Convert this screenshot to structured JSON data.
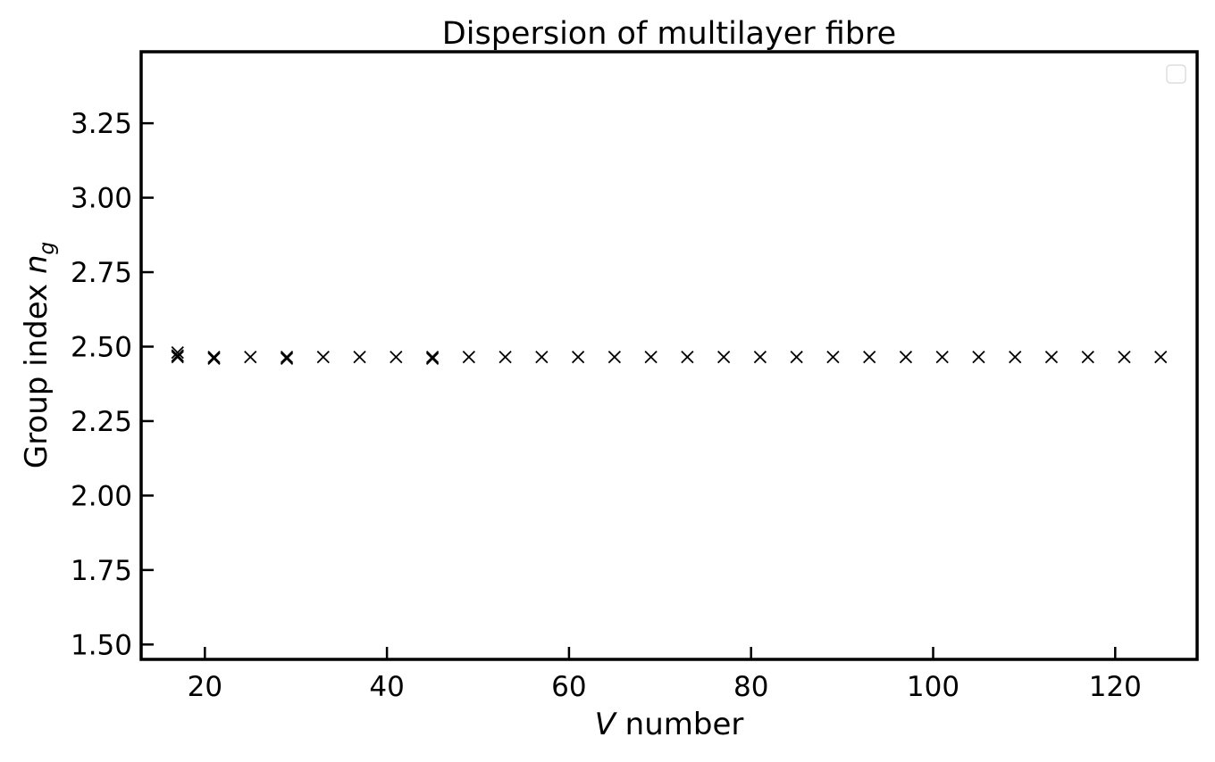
{
  "chart_data": {
    "type": "scatter",
    "title": "Dispersion of multilayer fibre",
    "xlabel": {
      "italic": "V",
      "rest": " number"
    },
    "ylabel": {
      "prefix": "Group index ",
      "var": "n",
      "sub": "g"
    },
    "xlim": [
      13,
      129
    ],
    "ylim": [
      1.45,
      3.49
    ],
    "xticks": [
      20,
      40,
      60,
      80,
      100,
      120
    ],
    "yticks": [
      1.5,
      1.75,
      2.0,
      2.25,
      2.5,
      2.75,
      3.0,
      3.25
    ],
    "ytick_labels": [
      "1.50",
      "1.75",
      "2.00",
      "2.25",
      "2.50",
      "2.75",
      "3.00",
      "3.25"
    ],
    "marker": "x",
    "marker_color": "#000000",
    "grid": false,
    "legend": {
      "placement": "top-right",
      "entries": []
    },
    "series": [
      {
        "points": [
          [
            17,
            2.48
          ],
          [
            17,
            2.47
          ],
          [
            17,
            2.465
          ],
          [
            21,
            2.465
          ],
          [
            21,
            2.46
          ],
          [
            25,
            2.465
          ],
          [
            29,
            2.465
          ],
          [
            29,
            2.46
          ],
          [
            33,
            2.465
          ],
          [
            37,
            2.465
          ],
          [
            41,
            2.465
          ],
          [
            45,
            2.465
          ],
          [
            45,
            2.46
          ],
          [
            49,
            2.465
          ],
          [
            53,
            2.465
          ],
          [
            57,
            2.465
          ],
          [
            61,
            2.465
          ],
          [
            65,
            2.465
          ],
          [
            69,
            2.465
          ],
          [
            73,
            2.465
          ],
          [
            77,
            2.465
          ],
          [
            81,
            2.465
          ],
          [
            85,
            2.465
          ],
          [
            89,
            2.465
          ],
          [
            93,
            2.465
          ],
          [
            97,
            2.465
          ],
          [
            101,
            2.465
          ],
          [
            105,
            2.465
          ],
          [
            109,
            2.465
          ],
          [
            113,
            2.465
          ],
          [
            117,
            2.465
          ],
          [
            121,
            2.465
          ],
          [
            125,
            2.465
          ]
        ]
      }
    ]
  }
}
